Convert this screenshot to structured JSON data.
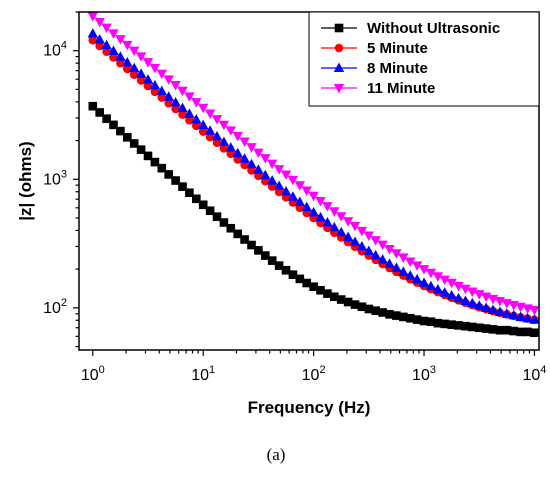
{
  "chart_data": {
    "type": "scatter",
    "xlabel": "Frequency (Hz)",
    "ylabel": "|z| (ohms)",
    "x_scale": "log",
    "y_scale": "log",
    "xlim": [
      0.75,
      11000
    ],
    "ylim": [
      47,
      20000
    ],
    "x_ticks": [
      {
        "base": "10",
        "exp": "0"
      },
      {
        "base": "10",
        "exp": "1"
      },
      {
        "base": "10",
        "exp": "2"
      },
      {
        "base": "10",
        "exp": "3"
      },
      {
        "base": "10",
        "exp": "4"
      }
    ],
    "y_ticks": [
      {
        "base": "10",
        "exp": "2"
      },
      {
        "base": "10",
        "exp": "3"
      },
      {
        "base": "10",
        "exp": "4"
      }
    ],
    "legend_position": "top-right",
    "caption": "(a)",
    "series": [
      {
        "name": "Without Ultrasonic",
        "color": "#000000",
        "marker": "square",
        "model": {
          "R": 62,
          "A": 3700,
          "n": 0.57
        },
        "values": [
          3700,
          3310,
          2960,
          2650,
          2370,
          2120,
          1900,
          1700,
          1520,
          1360,
          1220,
          1090,
          978,
          876,
          786,
          705,
          633,
          569,
          512,
          461,
          416,
          376,
          340,
          308,
          280,
          255,
          233,
          213,
          196,
          181,
          168,
          156,
          146,
          137,
          129,
          122,
          116,
          111,
          106,
          102,
          98,
          95,
          92,
          89,
          87,
          85,
          83,
          81,
          79,
          78,
          76,
          75,
          74,
          73,
          72,
          71,
          70,
          69,
          68,
          67,
          67,
          66,
          65,
          65,
          64
        ]
      },
      {
        "name": "5 Minute",
        "color": "#ff0000",
        "marker": "circle",
        "model": {
          "R": 65,
          "A": 12000,
          "n": 0.72
        }
      },
      {
        "name": "8 Minute",
        "color": "#0000ff",
        "marker": "triangle-up",
        "model": {
          "R": 63,
          "A": 13500,
          "n": 0.72
        }
      },
      {
        "name": "11 Minute",
        "color": "#ff00ff",
        "marker": "triangle-down",
        "model": {
          "R": 72,
          "A": 18500,
          "n": 0.72
        }
      }
    ]
  }
}
